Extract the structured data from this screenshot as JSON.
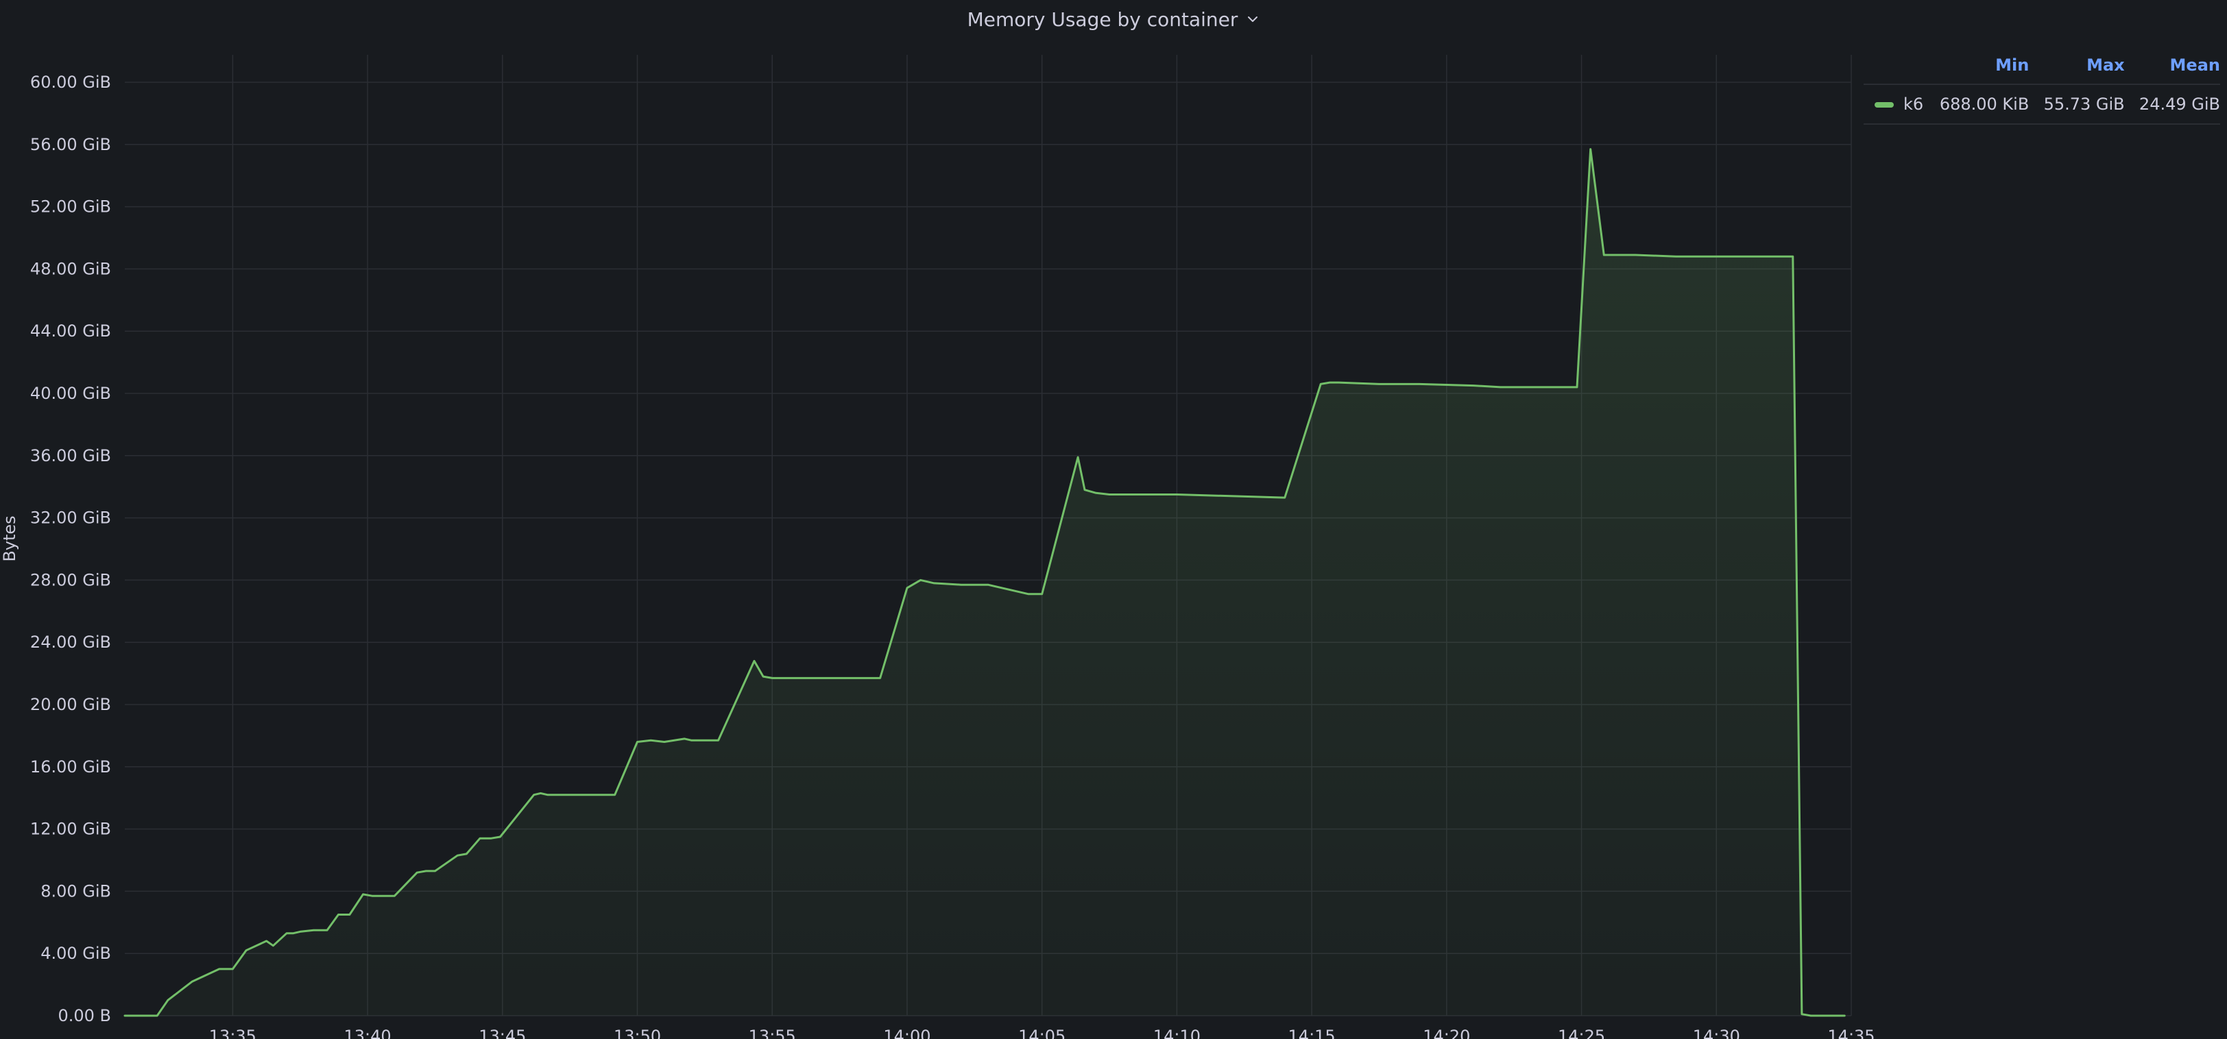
{
  "panel": {
    "title": "Memory Usage by container"
  },
  "colors": {
    "background": "#181b1f",
    "series": "#73bf69",
    "grid": "#2b2e34",
    "text": "#ccccdc",
    "legend_header": "#6e9fff"
  },
  "icons": {
    "title_menu": "chevron-down-icon"
  },
  "legend": {
    "headers": [
      "Min",
      "Max",
      "Mean"
    ],
    "rows": [
      {
        "name": "k6",
        "min": "688.00 KiB",
        "max": "55.73 GiB",
        "mean": "24.49 GiB"
      }
    ]
  },
  "chart_data": {
    "type": "area",
    "title": "Memory Usage by container",
    "ylabel": "Bytes",
    "xlabel": "",
    "x_unit": "time (HH:MM)",
    "y_unit": "GiB",
    "ylim": [
      0,
      60
    ],
    "xlim": [
      "13:31",
      "14:35"
    ],
    "y_ticks": [
      0,
      4,
      8,
      12,
      16,
      20,
      24,
      28,
      32,
      36,
      40,
      44,
      48,
      52,
      56,
      60
    ],
    "y_tick_labels": [
      "0.00 B",
      "4.00 GiB",
      "8.00 GiB",
      "12.00 GiB",
      "16.00 GiB",
      "20.00 GiB",
      "24.00 GiB",
      "28.00 GiB",
      "32.00 GiB",
      "36.00 GiB",
      "40.00 GiB",
      "44.00 GiB",
      "48.00 GiB",
      "52.00 GiB",
      "56.00 GiB",
      "60.00 GiB"
    ],
    "x_ticks": [
      "13:35",
      "13:40",
      "13:45",
      "13:50",
      "13:55",
      "14:00",
      "14:05",
      "14:10",
      "14:15",
      "14:20",
      "14:25",
      "14:30",
      "14:35"
    ],
    "grid": true,
    "legend_position": "top-right",
    "series": [
      {
        "name": "k6",
        "color": "#73bf69",
        "x": [
          "13:31:00",
          "13:32:12",
          "13:32:36",
          "13:33:30",
          "13:34:30",
          "13:35:00",
          "13:35:30",
          "13:36:15",
          "13:36:30",
          "13:37:00",
          "13:37:15",
          "13:37:30",
          "13:38:00",
          "13:38:30",
          "13:38:55",
          "13:39:20",
          "13:39:50",
          "13:40:10",
          "13:40:35",
          "13:41:00",
          "13:41:50",
          "13:42:10",
          "13:42:30",
          "13:43:20",
          "13:43:40",
          "13:44:10",
          "13:44:35",
          "13:44:55",
          "13:46:10",
          "13:46:25",
          "13:46:40",
          "13:47:30",
          "13:49:10",
          "13:50:00",
          "13:50:30",
          "13:51:00",
          "13:51:45",
          "13:52:00",
          "13:52:30",
          "13:53:00",
          "13:54:20",
          "13:54:40",
          "13:55:00",
          "13:55:20",
          "13:56:00",
          "13:57:30",
          "13:59:00",
          "14:00:00",
          "14:00:30",
          "14:01:00",
          "14:02:00",
          "14:03:00",
          "14:04:30",
          "14:05:00",
          "14:06:20",
          "14:06:35",
          "14:07:00",
          "14:07:30",
          "14:08:30",
          "14:10:00",
          "14:12:00",
          "14:14:00",
          "14:15:20",
          "14:15:40",
          "14:16:00",
          "14:17:30",
          "14:19:00",
          "14:21:00",
          "14:22:00",
          "14:24:50",
          "14:25:20",
          "14:25:50",
          "14:26:10",
          "14:26:30",
          "14:27:00",
          "14:28:30",
          "14:30:00",
          "14:32:00",
          "14:32:50",
          "14:33:10",
          "14:33:30",
          "14:34:00",
          "14:34:45"
        ],
        "values": [
          0,
          0,
          1.0,
          2.2,
          3.0,
          3.0,
          4.2,
          4.8,
          4.5,
          5.3,
          5.3,
          5.4,
          5.5,
          5.5,
          6.5,
          6.5,
          7.8,
          7.7,
          7.7,
          7.7,
          9.2,
          9.3,
          9.3,
          10.3,
          10.4,
          11.4,
          11.4,
          11.5,
          14.2,
          14.3,
          14.2,
          14.2,
          14.2,
          17.6,
          17.7,
          17.6,
          17.8,
          17.7,
          17.7,
          17.7,
          22.8,
          21.8,
          21.7,
          21.7,
          21.7,
          21.7,
          21.7,
          27.5,
          28.0,
          27.8,
          27.7,
          27.7,
          27.1,
          27.1,
          35.9,
          33.8,
          33.6,
          33.5,
          33.5,
          33.5,
          33.4,
          33.3,
          40.6,
          40.7,
          40.7,
          40.6,
          40.6,
          40.5,
          40.4,
          40.4,
          55.7,
          48.9,
          48.9,
          48.9,
          48.9,
          48.8,
          48.8,
          48.8,
          48.8,
          0.1,
          0.0,
          0.0,
          0.0
        ]
      }
    ]
  }
}
